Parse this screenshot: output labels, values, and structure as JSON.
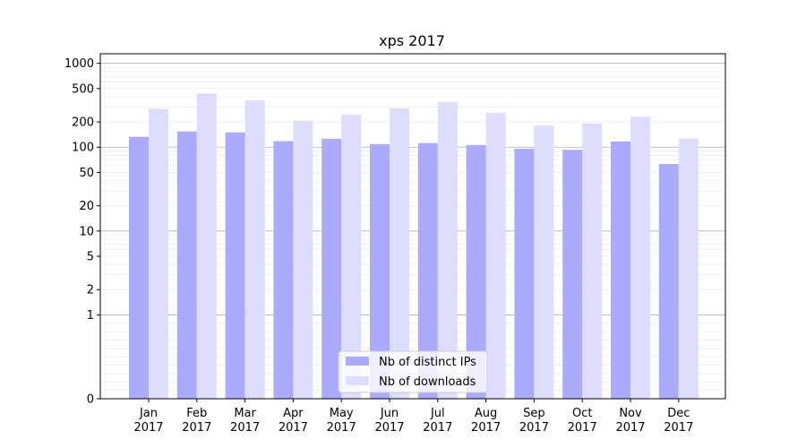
{
  "chart_data": {
    "type": "bar",
    "title": "xps 2017",
    "y_scale": "symlog",
    "ylim": [
      0,
      1300
    ],
    "y_ticks": [
      {
        "value": 0,
        "label": "0"
      },
      {
        "value": 1,
        "label": "1"
      },
      {
        "value": 2,
        "label": "2"
      },
      {
        "value": 5,
        "label": "5"
      },
      {
        "value": 10,
        "label": "10"
      },
      {
        "value": 20,
        "label": "20"
      },
      {
        "value": 50,
        "label": "50"
      },
      {
        "value": 100,
        "label": "100"
      },
      {
        "value": 200,
        "label": "200"
      },
      {
        "value": 500,
        "label": "500"
      },
      {
        "value": 1000,
        "label": "1000"
      }
    ],
    "categories": [
      {
        "month": "Jan",
        "year": "2017"
      },
      {
        "month": "Feb",
        "year": "2017"
      },
      {
        "month": "Mar",
        "year": "2017"
      },
      {
        "month": "Apr",
        "year": "2017"
      },
      {
        "month": "May",
        "year": "2017"
      },
      {
        "month": "Jun",
        "year": "2017"
      },
      {
        "month": "Jul",
        "year": "2017"
      },
      {
        "month": "Aug",
        "year": "2017"
      },
      {
        "month": "Sep",
        "year": "2017"
      },
      {
        "month": "Oct",
        "year": "2017"
      },
      {
        "month": "Nov",
        "year": "2017"
      },
      {
        "month": "Dec",
        "year": "2017"
      }
    ],
    "series": [
      {
        "name": "Nb of distinct IPs",
        "color": "#aaaaff",
        "values": [
          133,
          154,
          150,
          118,
          126,
          109,
          112,
          106,
          96,
          93,
          117,
          63
        ]
      },
      {
        "name": "Nb of downloads",
        "color": "#ddddff",
        "values": [
          287,
          436,
          360,
          207,
          246,
          290,
          346,
          256,
          182,
          192,
          230,
          127
        ]
      }
    ],
    "grid": true,
    "legend_position": "lower center"
  }
}
